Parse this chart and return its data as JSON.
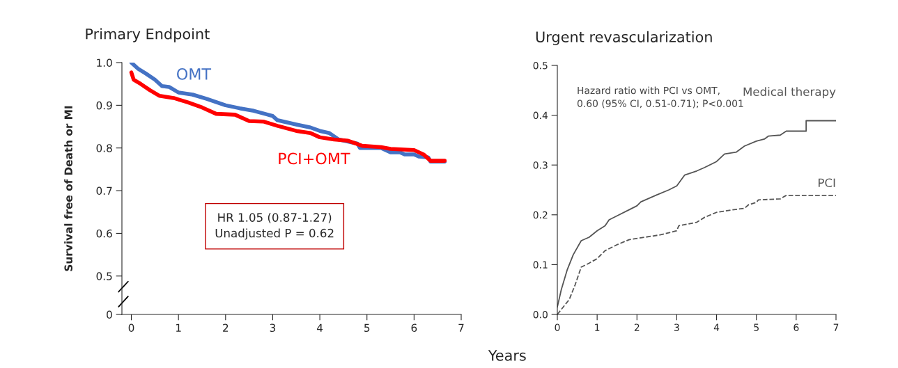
{
  "chart_data": [
    {
      "type": "line",
      "title": "Primary Endpoint",
      "xlabel": "Years",
      "ylabel": "Survival free of Death or MI",
      "xlim": [
        -0.2,
        7
      ],
      "xticks": [
        0,
        1,
        2,
        3,
        4,
        5,
        6,
        7
      ],
      "ylim": [
        0.41,
        1.0
      ],
      "yticks": [
        {
          "value": 0.41,
          "label": "0"
        },
        0.5,
        0.6,
        0.7,
        0.8,
        0.9,
        {
          "value": 1.0,
          "label": "1.0"
        }
      ],
      "grid": false,
      "legend": false,
      "marker": "none",
      "line_style": "solid",
      "annotations": [
        "HR 1.05 (0.87-1.27)\nUnadjusted P = 0.62"
      ],
      "series": [
        {
          "name": "OMT",
          "color": "#4472c4",
          "x": [
            0,
            0.15,
            0.3,
            0.5,
            0.65,
            0.8,
            1.0,
            1.3,
            1.6,
            2.0,
            2.3,
            2.6,
            2.9,
            3.0,
            3.1,
            3.5,
            3.8,
            4.0,
            4.2,
            4.4,
            4.6,
            4.8,
            4.85,
            5.3,
            5.5,
            5.7,
            5.8,
            6.0,
            6.1,
            6.3,
            6.35,
            6.65
          ],
          "values": [
            1.0,
            0.985,
            0.975,
            0.96,
            0.945,
            0.943,
            0.93,
            0.925,
            0.915,
            0.9,
            0.893,
            0.887,
            0.878,
            0.875,
            0.865,
            0.855,
            0.848,
            0.84,
            0.835,
            0.82,
            0.815,
            0.81,
            0.8,
            0.8,
            0.79,
            0.79,
            0.785,
            0.785,
            0.78,
            0.778,
            0.768,
            0.768
          ]
        },
        {
          "name": "PCI+OMT",
          "color": "#ff0000",
          "x": [
            0,
            0.05,
            0.2,
            0.4,
            0.6,
            0.9,
            1.2,
            1.5,
            1.8,
            2.2,
            2.5,
            2.8,
            3.1,
            3.5,
            3.8,
            4.0,
            4.3,
            4.6,
            4.9,
            5.3,
            5.5,
            6.0,
            6.2,
            6.35,
            6.65
          ],
          "values": [
            0.977,
            0.96,
            0.95,
            0.935,
            0.922,
            0.917,
            0.907,
            0.895,
            0.88,
            0.878,
            0.863,
            0.862,
            0.852,
            0.84,
            0.835,
            0.825,
            0.82,
            0.817,
            0.805,
            0.802,
            0.798,
            0.795,
            0.785,
            0.77,
            0.77
          ]
        }
      ]
    },
    {
      "type": "line",
      "title": "Urgent revascularization",
      "xlim": [
        0,
        7
      ],
      "xticks": [
        0,
        1,
        2,
        3,
        4,
        5,
        6,
        7
      ],
      "ylim": [
        0,
        0.5
      ],
      "yticks": [
        {
          "value": 0,
          "label": "0.0"
        },
        0.1,
        0.2,
        0.3,
        0.4,
        0.5
      ],
      "grid": false,
      "legend": false,
      "marker": "none",
      "annotations": [
        "Hazard ratio with PCI vs OMT,\n0.60 (95% CI, 0.51-0.71); P<0.001"
      ],
      "series": [
        {
          "name": "Medical therapy",
          "color": "#555555",
          "line_style": "solid",
          "x": [
            0,
            0.1,
            0.25,
            0.4,
            0.6,
            0.8,
            1.0,
            1.2,
            1.3,
            1.5,
            1.8,
            2.0,
            2.1,
            2.5,
            2.8,
            3.0,
            3.2,
            3.5,
            3.7,
            4.0,
            4.2,
            4.5,
            4.7,
            5.0,
            5.2,
            5.3,
            5.6,
            5.75,
            6.25,
            6.25,
            7.0
          ],
          "values": [
            0.015,
            0.05,
            0.09,
            0.12,
            0.148,
            0.155,
            0.168,
            0.178,
            0.19,
            0.198,
            0.21,
            0.218,
            0.226,
            0.24,
            0.25,
            0.258,
            0.28,
            0.288,
            0.295,
            0.307,
            0.322,
            0.326,
            0.338,
            0.348,
            0.352,
            0.358,
            0.36,
            0.368,
            0.368,
            0.389,
            0.389
          ]
        },
        {
          "name": "PCI",
          "color": "#555555",
          "line_style": "dashed",
          "x": [
            0,
            0.3,
            0.45,
            0.6,
            0.8,
            1.0,
            1.2,
            1.5,
            1.8,
            2.2,
            2.6,
            3.0,
            3.05,
            3.5,
            3.7,
            4.0,
            4.4,
            4.7,
            4.8,
            5.0,
            5.05,
            5.6,
            5.75,
            7.0
          ],
          "values": [
            0.0,
            0.03,
            0.06,
            0.095,
            0.103,
            0.112,
            0.128,
            0.14,
            0.15,
            0.155,
            0.16,
            0.168,
            0.178,
            0.185,
            0.195,
            0.205,
            0.21,
            0.213,
            0.22,
            0.225,
            0.23,
            0.232,
            0.239,
            0.239
          ]
        }
      ]
    }
  ]
}
